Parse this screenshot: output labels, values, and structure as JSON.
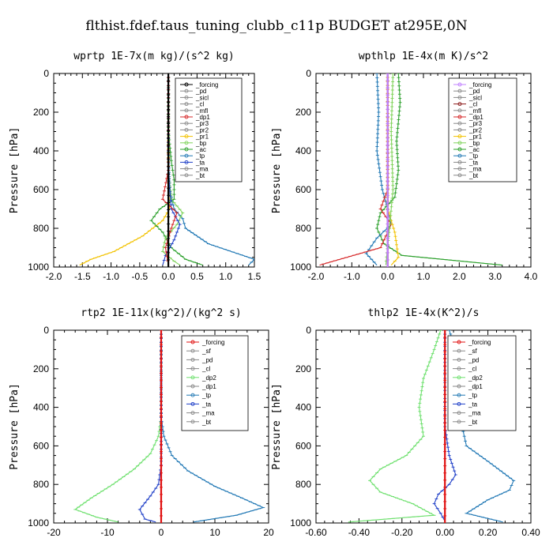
{
  "suptitle": "flthist.fdef.taus_tuning_clubb_c11p  BUDGET at295E,0N",
  "chart_data": [
    {
      "type": "line",
      "title": "wprtp  1E-7x(m kg)/(s^2 kg)",
      "ylabel": "Pressure [hPa]",
      "xlim": [
        -2.0,
        1.5
      ],
      "ylim": [
        1000,
        0
      ],
      "xticks": [
        "-2.0",
        "-1.5",
        "-1.0",
        "-0.5",
        "0.0",
        "0.5",
        "1.0",
        "1.5"
      ],
      "yticks": [
        "0",
        "200",
        "400",
        "600",
        "800",
        "1000"
      ],
      "legend": [
        "_forcing",
        "_pd",
        "_sicl",
        "_cl",
        "_mfl",
        "_dp1",
        "_pr3",
        "_pr2",
        "_pr1",
        "_bp",
        "_ac",
        "_tp",
        "_ta",
        "_ma",
        "_bt"
      ],
      "series": [
        {
          "name": "_pr1",
          "color": "#f2c200",
          "points": [
            [
              0,
              0
            ],
            [
              0,
              300
            ],
            [
              0,
              500
            ],
            [
              0.02,
              700
            ],
            [
              -0.1,
              760
            ],
            [
              -0.45,
              840
            ],
            [
              -0.95,
              920
            ],
            [
              -1.35,
              960
            ],
            [
              -1.55,
              990
            ]
          ]
        },
        {
          "name": "_ac",
          "color": "#2ca02c",
          "points": [
            [
              0,
              0
            ],
            [
              0,
              300
            ],
            [
              0.05,
              450
            ],
            [
              0.1,
              550
            ],
            [
              0.1,
              650
            ],
            [
              -0.15,
              700
            ],
            [
              -0.3,
              760
            ],
            [
              -0.1,
              820
            ],
            [
              0.05,
              900
            ],
            [
              0.3,
              960
            ],
            [
              0.6,
              990
            ]
          ]
        },
        {
          "name": "_tp",
          "color": "#1f77b4",
          "points": [
            [
              0,
              0
            ],
            [
              0,
              400
            ],
            [
              0.02,
              600
            ],
            [
              0.1,
              700
            ],
            [
              0.25,
              750
            ],
            [
              0.3,
              800
            ],
            [
              0.7,
              880
            ],
            [
              1.2,
              930
            ],
            [
              1.5,
              960
            ],
            [
              1.4,
              990
            ]
          ]
        },
        {
          "name": "_bp",
          "color": "#7fd35a",
          "points": [
            [
              0,
              0
            ],
            [
              0,
              500
            ],
            [
              0.05,
              650
            ],
            [
              0.25,
              720
            ],
            [
              0.15,
              780
            ],
            [
              -0.05,
              850
            ],
            [
              -0.1,
              920
            ],
            [
              0.1,
              970
            ],
            [
              0.2,
              990
            ]
          ]
        },
        {
          "name": "_ta",
          "color": "#2040c8",
          "points": [
            [
              0,
              0
            ],
            [
              0,
              500
            ],
            [
              0.05,
              700
            ],
            [
              0.2,
              780
            ],
            [
              0.1,
              860
            ],
            [
              -0.05,
              940
            ],
            [
              -0.1,
              990
            ]
          ]
        },
        {
          "name": "_dp1",
          "color": "#d62728",
          "points": [
            [
              0,
              0
            ],
            [
              0,
              500
            ],
            [
              -0.1,
              650
            ],
            [
              0.15,
              720
            ],
            [
              0.05,
              800
            ],
            [
              -0.05,
              900
            ],
            [
              0,
              990
            ]
          ]
        },
        {
          "name": "_forcing",
          "color": "#000000",
          "points": [
            [
              0,
              0
            ],
            [
              0,
              1000
            ]
          ]
        }
      ]
    },
    {
      "type": "line",
      "title": "wpthlp  1E-4x(m K)/s^2",
      "ylabel": "Pressure [hPa]",
      "xlim": [
        -2.0,
        4.0
      ],
      "ylim": [
        1000,
        0
      ],
      "xticks": [
        "-2.0",
        "-1.0",
        "0.0",
        "1.0",
        "2.0",
        "3.0",
        "4.0"
      ],
      "yticks": [
        "0",
        "200",
        "400",
        "600",
        "800",
        "1000"
      ],
      "legend": [
        "_forcing",
        "_pd",
        "_sicl",
        "_cl",
        "_mfl",
        "_dp1",
        "_pr3",
        "_pr2",
        "_pr1",
        "_bp",
        "_ac",
        "_tp",
        "_ta",
        "_ma",
        "_bt"
      ],
      "series": [
        {
          "name": "_ac",
          "color": "#2ca02c",
          "points": [
            [
              0.3,
              0
            ],
            [
              0.35,
              150
            ],
            [
              0.25,
              350
            ],
            [
              0.3,
              500
            ],
            [
              0.2,
              640
            ],
            [
              -0.2,
              720
            ],
            [
              -0.3,
              800
            ],
            [
              -0.1,
              880
            ],
            [
              0.4,
              940
            ],
            [
              3.2,
              990
            ]
          ]
        },
        {
          "name": "_tp",
          "color": "#1f77b4",
          "points": [
            [
              -0.3,
              0
            ],
            [
              -0.25,
              200
            ],
            [
              -0.3,
              400
            ],
            [
              -0.15,
              600
            ],
            [
              0,
              700
            ],
            [
              0.1,
              780
            ],
            [
              -0.3,
              850
            ],
            [
              -0.6,
              930
            ],
            [
              -0.3,
              990
            ]
          ]
        },
        {
          "name": "_dp1",
          "color": "#d62728",
          "points": [
            [
              0,
              0
            ],
            [
              0,
              600
            ],
            [
              -0.2,
              700
            ],
            [
              0.1,
              780
            ],
            [
              -0.2,
              900
            ],
            [
              -1.9,
              990
            ]
          ]
        },
        {
          "name": "_pr1",
          "color": "#f2c200",
          "points": [
            [
              0,
              0
            ],
            [
              0,
              700
            ],
            [
              0.2,
              820
            ],
            [
              0.3,
              950
            ],
            [
              0.1,
              990
            ]
          ]
        },
        {
          "name": "_bp",
          "color": "#7fd35a",
          "points": [
            [
              0.15,
              0
            ],
            [
              0.1,
              300
            ],
            [
              0.15,
              600
            ],
            [
              0.05,
              800
            ],
            [
              -0.05,
              990
            ]
          ]
        },
        {
          "name": "_cl",
          "color": "#8b1a1a",
          "points": [
            [
              0,
              0
            ],
            [
              0,
              1000
            ]
          ]
        },
        {
          "name": "_forcing",
          "color": "#c080ff",
          "points": [
            [
              0,
              0
            ],
            [
              0,
              1000
            ]
          ]
        }
      ]
    },
    {
      "type": "line",
      "title": "rtp2  1E-11x(kg^2)/(kg^2 s)",
      "ylabel": "Pressure [hPa]",
      "xlim": [
        -20,
        20
      ],
      "ylim": [
        1000,
        0
      ],
      "xticks": [
        "-20",
        "-10",
        "0",
        "10",
        "20"
      ],
      "yticks": [
        "0",
        "200",
        "400",
        "600",
        "800",
        "1000"
      ],
      "legend": [
        "_forcing",
        "_sf",
        "_pd",
        "_cl",
        "_dp2",
        "_dp1",
        "_tp",
        "_ta",
        "_ma",
        "_bt"
      ],
      "series": [
        {
          "name": "_dp2",
          "color": "#6ee06e",
          "points": [
            [
              0,
              0
            ],
            [
              0,
              450
            ],
            [
              -0.5,
              550
            ],
            [
              -2,
              640
            ],
            [
              -5,
              720
            ],
            [
              -9,
              800
            ],
            [
              -13,
              870
            ],
            [
              -16,
              930
            ],
            [
              -12,
              970
            ],
            [
              -8,
              995
            ]
          ]
        },
        {
          "name": "_tp",
          "color": "#1f77b4",
          "points": [
            [
              0,
              0
            ],
            [
              0,
              450
            ],
            [
              0.5,
              550
            ],
            [
              2,
              650
            ],
            [
              5,
              730
            ],
            [
              10,
              810
            ],
            [
              15,
              870
            ],
            [
              19,
              920
            ],
            [
              14,
              960
            ],
            [
              6,
              995
            ]
          ]
        },
        {
          "name": "_ta",
          "color": "#2040c8",
          "points": [
            [
              0,
              0
            ],
            [
              0,
              700
            ],
            [
              -0.5,
              800
            ],
            [
              -2,
              860
            ],
            [
              -4,
              930
            ],
            [
              -3,
              980
            ],
            [
              -1,
              995
            ]
          ]
        },
        {
          "name": "_forcing",
          "color": "#e01010",
          "points": [
            [
              0,
              0
            ],
            [
              0,
              1000
            ]
          ]
        }
      ]
    },
    {
      "type": "line",
      "title": "thlp2  1E-4x(K^2)/s",
      "ylabel": "Pressure [hPa]",
      "xlim": [
        -0.6,
        0.4
      ],
      "ylim": [
        1000,
        0
      ],
      "xticks": [
        "-0.60",
        "-0.40",
        "-0.20",
        "0.00",
        "0.20",
        "0.40"
      ],
      "yticks": [
        "0",
        "200",
        "400",
        "600",
        "800",
        "1000"
      ],
      "legend": [
        "_forcing",
        "_sf",
        "_pd",
        "_cl",
        "_dp2",
        "_dp1",
        "_tp",
        "_ta",
        "_ma",
        "_bt"
      ],
      "series": [
        {
          "name": "_dp2",
          "color": "#6ee06e",
          "points": [
            [
              -0.02,
              0
            ],
            [
              -0.05,
              100
            ],
            [
              -0.1,
              250
            ],
            [
              -0.12,
              400
            ],
            [
              -0.1,
              550
            ],
            [
              -0.18,
              650
            ],
            [
              -0.3,
              720
            ],
            [
              -0.35,
              780
            ],
            [
              -0.3,
              840
            ],
            [
              -0.15,
              900
            ],
            [
              -0.05,
              960
            ],
            [
              -0.45,
              995
            ]
          ]
        },
        {
          "name": "_tp",
          "color": "#1f77b4",
          "points": [
            [
              0.02,
              0
            ],
            [
              0.05,
              100
            ],
            [
              0.1,
              200
            ],
            [
              0.1,
              350
            ],
            [
              0.08,
              500
            ],
            [
              0.1,
              600
            ],
            [
              0.2,
              680
            ],
            [
              0.32,
              780
            ],
            [
              0.3,
              830
            ],
            [
              0.2,
              880
            ],
            [
              0.1,
              950
            ],
            [
              0.27,
              995
            ]
          ]
        },
        {
          "name": "_ta",
          "color": "#2040c8",
          "points": [
            [
              0,
              0
            ],
            [
              0,
              500
            ],
            [
              0.02,
              650
            ],
            [
              0.05,
              750
            ],
            [
              0.02,
              800
            ],
            [
              -0.03,
              850
            ],
            [
              -0.05,
              900
            ],
            [
              -0.02,
              950
            ],
            [
              0,
              990
            ]
          ]
        },
        {
          "name": "_forcing",
          "color": "#e01010",
          "points": [
            [
              0,
              0
            ],
            [
              0,
              1000
            ]
          ]
        }
      ]
    }
  ]
}
